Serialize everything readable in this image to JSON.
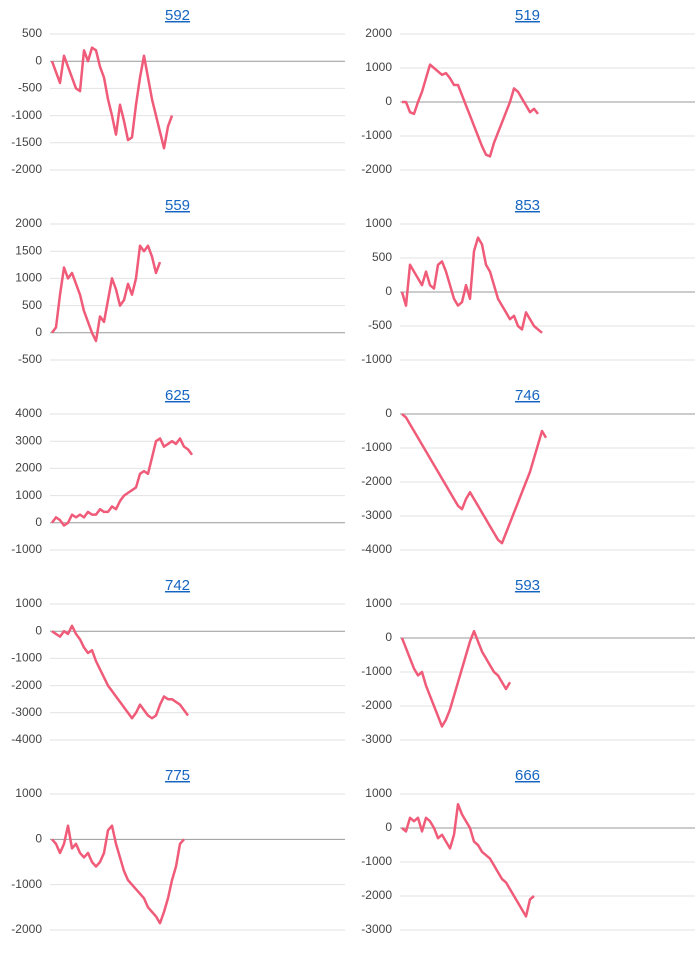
{
  "chart_data": [
    {
      "type": "line",
      "title": "592",
      "color": "#ef5b78",
      "grid": true,
      "ylim": [
        -2000,
        500
      ],
      "yticks": [
        -2000,
        -1500,
        -1000,
        -500,
        0,
        500
      ],
      "values": [
        0,
        -200,
        -400,
        100,
        -100,
        -300,
        -500,
        -550,
        200,
        0,
        250,
        200,
        -100,
        -300,
        -700,
        -1000,
        -1350,
        -800,
        -1100,
        -1450,
        -1400,
        -800,
        -300,
        100,
        -300,
        -700,
        -1000,
        -1300,
        -1600,
        -1200,
        -1000
      ]
    },
    {
      "type": "line",
      "title": "519",
      "color": "#ef5b78",
      "grid": true,
      "ylim": [
        -2000,
        2000
      ],
      "yticks": [
        -2000,
        -1000,
        0,
        1000,
        2000
      ],
      "values": [
        0,
        0,
        -300,
        -350,
        0,
        300,
        700,
        1100,
        1000,
        900,
        800,
        850,
        700,
        500,
        500,
        200,
        -100,
        -400,
        -700,
        -1000,
        -1300,
        -1550,
        -1600,
        -1200,
        -900,
        -600,
        -300,
        0,
        400,
        300,
        100,
        -100,
        -300,
        -200,
        -350
      ]
    },
    {
      "type": "line",
      "title": "559",
      "color": "#ef5b78",
      "grid": true,
      "ylim": [
        -500,
        2000
      ],
      "yticks": [
        -500,
        0,
        500,
        1000,
        1500,
        2000
      ],
      "values": [
        0,
        100,
        700,
        1200,
        1000,
        1100,
        900,
        700,
        400,
        200,
        0,
        -150,
        300,
        200,
        600,
        1000,
        800,
        500,
        600,
        900,
        700,
        1000,
        1600,
        1500,
        1600,
        1400,
        1100,
        1300
      ]
    },
    {
      "type": "line",
      "title": "853",
      "color": "#ef5b78",
      "grid": true,
      "ylim": [
        -1000,
        1000
      ],
      "yticks": [
        -1000,
        -500,
        0,
        500,
        1000
      ],
      "values": [
        0,
        -200,
        400,
        300,
        200,
        100,
        300,
        100,
        50,
        400,
        450,
        300,
        100,
        -100,
        -200,
        -150,
        100,
        -100,
        600,
        800,
        700,
        400,
        300,
        100,
        -100,
        -200,
        -300,
        -400,
        -350,
        -500,
        -550,
        -300,
        -400,
        -500,
        -550,
        -600
      ]
    },
    {
      "type": "line",
      "title": "625",
      "color": "#ef5b78",
      "grid": true,
      "ylim": [
        -1000,
        4000
      ],
      "yticks": [
        -1000,
        0,
        1000,
        2000,
        3000,
        4000
      ],
      "values": [
        0,
        200,
        100,
        -100,
        0,
        300,
        200,
        300,
        200,
        400,
        300,
        300,
        500,
        400,
        400,
        600,
        500,
        800,
        1000,
        1100,
        1200,
        1300,
        1800,
        1900,
        1800,
        2400,
        3000,
        3100,
        2800,
        2900,
        3000,
        2900,
        3100,
        2800,
        2700,
        2500
      ]
    },
    {
      "type": "line",
      "title": "746",
      "color": "#ef5b78",
      "grid": true,
      "ylim": [
        -4000,
        0
      ],
      "yticks": [
        -4000,
        -3000,
        -2000,
        -1000,
        0
      ],
      "values": [
        0,
        -100,
        -300,
        -500,
        -700,
        -900,
        -1100,
        -1300,
        -1500,
        -1700,
        -1900,
        -2100,
        -2300,
        -2500,
        -2700,
        -2800,
        -2500,
        -2300,
        -2500,
        -2700,
        -2900,
        -3100,
        -3300,
        -3500,
        -3700,
        -3800,
        -3500,
        -3200,
        -2900,
        -2600,
        -2300,
        -2000,
        -1700,
        -1300,
        -900,
        -500,
        -700
      ]
    },
    {
      "type": "line",
      "title": "742",
      "color": "#ef5b78",
      "grid": true,
      "ylim": [
        -4000,
        1000
      ],
      "yticks": [
        -4000,
        -3000,
        -2000,
        -1000,
        0,
        1000
      ],
      "values": [
        0,
        -100,
        -200,
        0,
        -100,
        200,
        -100,
        -300,
        -600,
        -800,
        -700,
        -1100,
        -1400,
        -1700,
        -2000,
        -2200,
        -2400,
        -2600,
        -2800,
        -3000,
        -3200,
        -3000,
        -2700,
        -2900,
        -3100,
        -3200,
        -3100,
        -2700,
        -2400,
        -2500,
        -2500,
        -2600,
        -2700,
        -2900,
        -3100
      ]
    },
    {
      "type": "line",
      "title": "593",
      "color": "#ef5b78",
      "grid": true,
      "ylim": [
        -3000,
        1000
      ],
      "yticks": [
        -3000,
        -2000,
        -1000,
        0,
        1000
      ],
      "values": [
        0,
        -300,
        -600,
        -900,
        -1100,
        -1000,
        -1400,
        -1700,
        -2000,
        -2300,
        -2600,
        -2400,
        -2100,
        -1700,
        -1300,
        -900,
        -500,
        -100,
        200,
        -100,
        -400,
        -600,
        -800,
        -1000,
        -1100,
        -1300,
        -1500,
        -1300
      ]
    },
    {
      "type": "line",
      "title": "775",
      "color": "#ef5b78",
      "grid": true,
      "ylim": [
        -2000,
        1000
      ],
      "yticks": [
        -2000,
        -1000,
        0,
        1000
      ],
      "values": [
        0,
        -100,
        -300,
        -100,
        300,
        -200,
        -100,
        -300,
        -400,
        -300,
        -500,
        -600,
        -500,
        -300,
        200,
        300,
        -100,
        -400,
        -700,
        -900,
        -1000,
        -1100,
        -1200,
        -1300,
        -1500,
        -1600,
        -1700,
        -1850,
        -1600,
        -1300,
        -900,
        -600,
        -100,
        0
      ]
    },
    {
      "type": "line",
      "title": "666",
      "color": "#ef5b78",
      "grid": true,
      "ylim": [
        -3000,
        1000
      ],
      "yticks": [
        -3000,
        -2000,
        -1000,
        0,
        1000
      ],
      "values": [
        0,
        -100,
        300,
        200,
        300,
        -100,
        300,
        200,
        0,
        -300,
        -200,
        -400,
        -600,
        -200,
        700,
        400,
        200,
        0,
        -400,
        -500,
        -700,
        -800,
        -900,
        -1100,
        -1300,
        -1500,
        -1600,
        -1800,
        -2000,
        -2200,
        -2400,
        -2600,
        -2100,
        -2000
      ]
    }
  ]
}
